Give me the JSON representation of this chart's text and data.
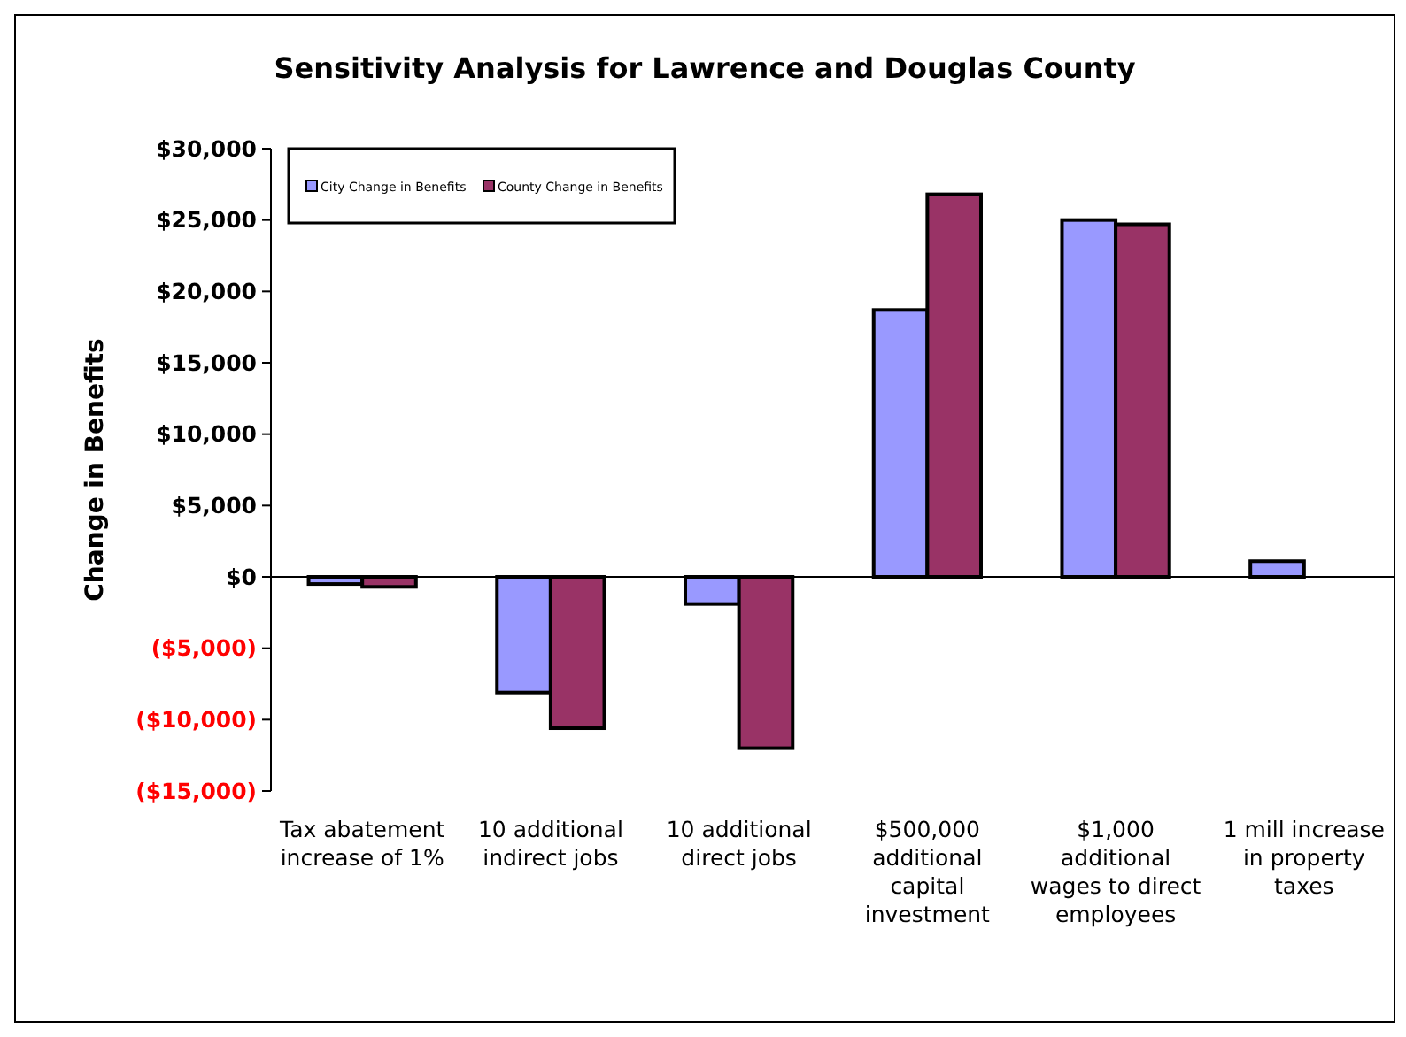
{
  "chart_data": {
    "type": "bar",
    "title": "Sensitivity Analysis for Lawrence and Douglas County",
    "ylabel": "Change in Benefits",
    "categories": [
      "Tax abatement increase of 1%",
      "10 additional indirect jobs",
      "10 additional direct jobs",
      "$500,000 additional capital investment",
      "$1,000 additional wages to direct employees",
      "1 mill increase in property taxes"
    ],
    "series": [
      {
        "name": "City Change in Benefits",
        "color": "#9999ff",
        "values": [
          -500,
          -8100,
          -1900,
          18700,
          25000,
          1100
        ]
      },
      {
        "name": "County Change in Benefits",
        "color": "#993366",
        "values": [
          -700,
          -10600,
          -12000,
          26800,
          24700,
          0
        ]
      }
    ],
    "ylim": [
      -15000,
      30000
    ],
    "yticks": [
      {
        "value": -15000,
        "label": "($15,000)"
      },
      {
        "value": -10000,
        "label": "($10,000)"
      },
      {
        "value": -5000,
        "label": "($5,000)"
      },
      {
        "value": 0,
        "label": "$0"
      },
      {
        "value": 5000,
        "label": "$5,000"
      },
      {
        "value": 10000,
        "label": "$10,000"
      },
      {
        "value": 15000,
        "label": "$15,000"
      },
      {
        "value": 20000,
        "label": "$20,000"
      },
      {
        "value": 25000,
        "label": "$25,000"
      },
      {
        "value": 30000,
        "label": "$30,000"
      }
    ],
    "legend": "top left"
  }
}
